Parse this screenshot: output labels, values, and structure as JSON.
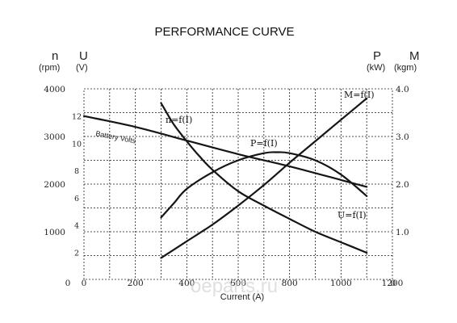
{
  "chart_data": {
    "type": "line",
    "title": "PERFORMANCE CURVE",
    "xlabel": "Current (A)",
    "xlim": [
      0,
      1200
    ],
    "x_ticks": [
      0,
      200,
      400,
      600,
      800,
      1000,
      1200
    ],
    "left_axes": {
      "n": {
        "letter": "n",
        "unit": "(rpm)",
        "ylim": [
          0,
          4000
        ],
        "ticks": [
          1000,
          2000,
          3000,
          4000
        ],
        "zero_label": "0"
      },
      "U": {
        "letter": "U",
        "unit": "(V)",
        "ylim": [
          0,
          14
        ],
        "ticks": [
          2,
          4,
          6,
          8,
          10,
          12
        ],
        "zero_label": "0"
      }
    },
    "right_axes": {
      "P": {
        "letter": "P",
        "unit": "(kW)"
      },
      "M": {
        "letter": "M",
        "unit": "(kgm)"
      },
      "ylim": [
        0,
        4.0
      ],
      "ticks": [
        "1.0",
        "2.0",
        "3.0",
        "4.0"
      ],
      "zero_label": "0"
    },
    "grid": true,
    "series": [
      {
        "name": "n=f(I)",
        "axis": "n",
        "x": [
          300,
          350,
          400,
          450,
          500,
          600,
          700,
          800,
          900,
          1000,
          1100
        ],
        "y": [
          3700,
          3250,
          2900,
          2580,
          2300,
          1850,
          1550,
          1270,
          1000,
          780,
          560
        ]
      },
      {
        "name": "P=f(I)",
        "axis": "right",
        "x": [
          300,
          350,
          400,
          500,
          600,
          700,
          750,
          800,
          900,
          1000,
          1100
        ],
        "y": [
          1.3,
          1.6,
          1.9,
          2.25,
          2.5,
          2.65,
          2.67,
          2.65,
          2.5,
          2.2,
          1.75
        ]
      },
      {
        "name": "M=f(I)",
        "axis": "right",
        "x": [
          300,
          400,
          500,
          600,
          700,
          800,
          900,
          1000,
          1100
        ],
        "y": [
          0.45,
          0.8,
          1.15,
          1.55,
          1.98,
          2.45,
          2.9,
          3.35,
          3.8
        ]
      },
      {
        "name": "U=f(I)",
        "axis": "U",
        "x": [
          0,
          200,
          400,
          600,
          800,
          1000,
          1100
        ],
        "y": [
          12.0,
          11.2,
          10.2,
          9.2,
          8.3,
          7.3,
          6.8
        ]
      }
    ],
    "annotations": {
      "battery": "Battery Volts",
      "n_label": "n=f(I)",
      "p_label": "P=f(I)",
      "m_label": "M=f(I)",
      "u_label": "U=f(I)"
    }
  },
  "watermark": "oeparts.ru"
}
